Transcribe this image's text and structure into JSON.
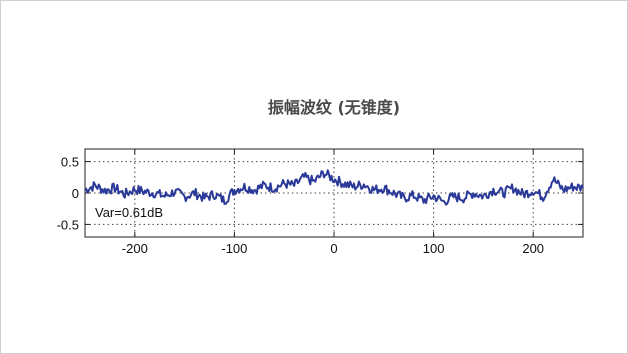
{
  "chart_data": {
    "type": "line",
    "title": "振幅波纹 (无锥度)",
    "xlabel": "",
    "ylabel": "",
    "xlim": [
      -250,
      250
    ],
    "ylim": [
      -0.7,
      0.7
    ],
    "xticks": [
      -200,
      -100,
      0,
      100,
      200
    ],
    "yticks": [
      0.5,
      0,
      -0.5
    ],
    "xtick_labels": [
      "-200",
      "-100",
      "0",
      "100",
      "200"
    ],
    "ytick_labels": [
      "0.5",
      "0",
      "-0.5"
    ],
    "grid": true,
    "grid_style": "dotted",
    "line_color": "#2b3a99",
    "annotation": "Var=0.61dB",
    "series": [
      {
        "x": [
          -250,
          -240,
          -230,
          -220,
          -210,
          -200,
          -190,
          -180,
          -170,
          -160,
          -150,
          -140,
          -130,
          -120,
          -110,
          -100,
          -90,
          -80,
          -70,
          -60,
          -50,
          -40,
          -30,
          -20,
          -10,
          0,
          10,
          20,
          30,
          40,
          50,
          60,
          70,
          80,
          90,
          100,
          110,
          120,
          130,
          140,
          150,
          160,
          170,
          180,
          190,
          200,
          210,
          220,
          230,
          240,
          250
        ],
        "values": [
          0.05,
          0.12,
          0.04,
          0.08,
          -0.02,
          0.06,
          0.02,
          0.0,
          -0.05,
          0.02,
          -0.06,
          0.0,
          -0.08,
          -0.02,
          -0.12,
          0.05,
          0.1,
          0.05,
          0.12,
          0.08,
          0.15,
          0.12,
          0.25,
          0.18,
          0.32,
          0.22,
          0.15,
          0.1,
          0.14,
          0.05,
          0.08,
          0.0,
          -0.08,
          -0.04,
          -0.12,
          -0.05,
          -0.14,
          -0.06,
          -0.08,
          0.0,
          -0.05,
          0.05,
          0.0,
          0.08,
          -0.02,
          0.04,
          -0.06,
          0.22,
          0.05,
          0.1,
          0.08
        ]
      }
    ]
  }
}
